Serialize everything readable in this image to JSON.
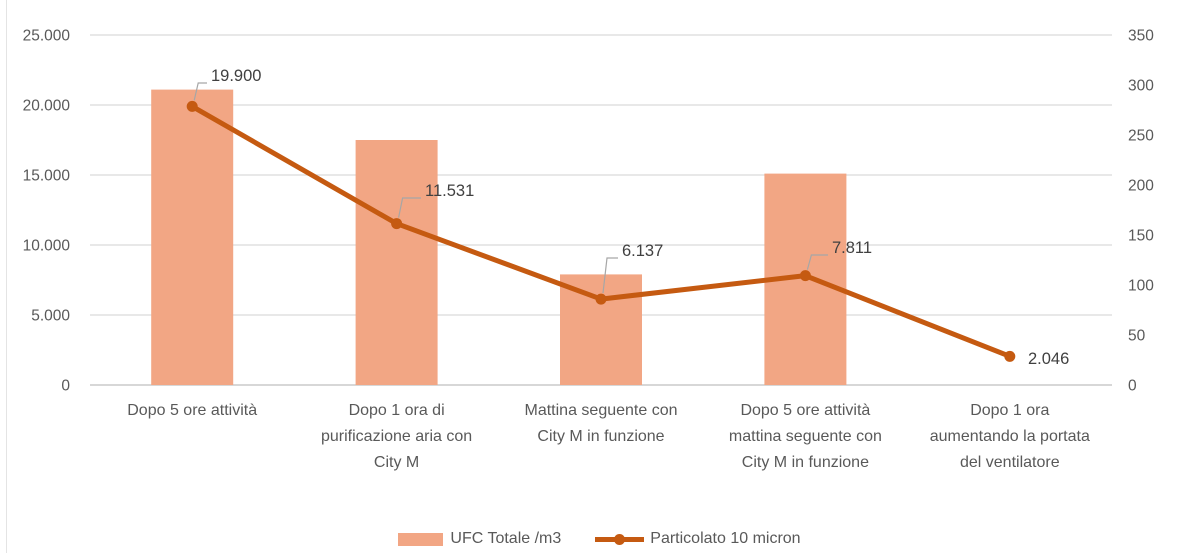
{
  "chart_data": {
    "type": "combo",
    "title": "",
    "xlabel": "",
    "ylabel": "",
    "categories": [
      "Dopo 5 ore attività",
      "Dopo 1 ora di purificazione aria con City M",
      "Mattina seguente con City M in funzione",
      "Dopo 5 ore attività mattina seguente con City M in funzione",
      "Dopo 1 ora aumentando la portata del ventilatore"
    ],
    "category_lines": [
      [
        "Dopo 5 ore attività"
      ],
      [
        "Dopo 1 ora di",
        "purificazione aria con",
        "City M"
      ],
      [
        "Mattina seguente con",
        "City M in funzione"
      ],
      [
        "Dopo 5 ore attività",
        "mattina seguente con",
        "City M in funzione"
      ],
      [
        "Dopo 1 ora",
        "aumentando la portata",
        "del ventilatore"
      ]
    ],
    "series": [
      {
        "name": "UFC Totale /m3",
        "type": "bar",
        "axis": "left",
        "values": [
          21100,
          17500,
          7900,
          15100,
          null
        ],
        "color": "#F2A684"
      },
      {
        "name": "Particolato 10 micron",
        "type": "line",
        "axis": "left",
        "values": [
          19900,
          11531,
          6137,
          7811,
          2046
        ],
        "data_labels": [
          "19.900",
          "11.531",
          "6.137",
          "7.811",
          "2.046"
        ],
        "color": "#C55A11"
      }
    ],
    "left_axis": {
      "min": 0,
      "max": 25000,
      "tick_labels": [
        "0",
        "5.000",
        "10.000",
        "15.000",
        "20.000",
        "25.000"
      ]
    },
    "right_axis": {
      "min": 0,
      "max": 350,
      "tick_labels": [
        "0",
        "50",
        "100",
        "150",
        "200",
        "250",
        "300",
        "350"
      ]
    },
    "gridlines": true,
    "legend_position": "bottom"
  },
  "colors": {
    "bar": "#F2A684",
    "line": "#C55A11",
    "grid": "#D9D9D9",
    "axis_line": "#BFBFBF",
    "tick_text": "#595959",
    "category_text": "#595959",
    "data_label_text": "#404040",
    "leader": "#A6A6A6",
    "legend_text": "#595959",
    "background": "#FFFFFF",
    "sheet_border": "#E4E4E4"
  }
}
